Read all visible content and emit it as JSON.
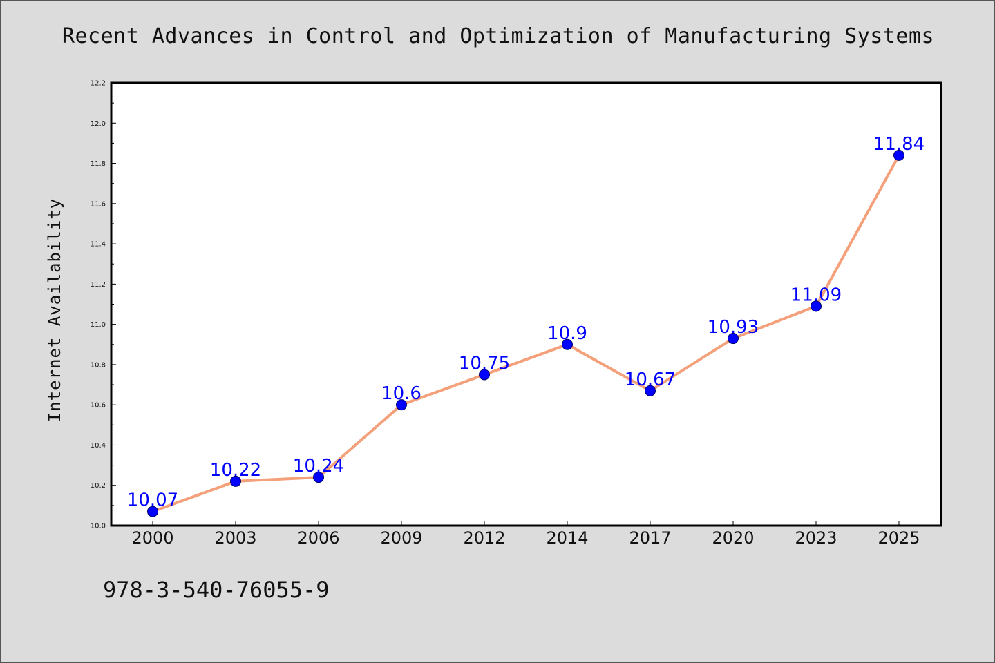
{
  "title": "Recent Advances in Control and Optimization of Manufacturing Systems",
  "footer": "978-3-540-76055-9",
  "colors": {
    "background": "#dcdcdc",
    "plot_background": "#ffffff",
    "line": "#f4a07a",
    "marker": "#0000ff",
    "data_label": "#0000ff"
  },
  "chart_data": {
    "type": "line",
    "title": "Recent Advances in Control and Optimization of Manufacturing Systems",
    "xlabel": "",
    "ylabel": "Internet Availability",
    "categories": [
      "2000",
      "2003",
      "2006",
      "2009",
      "2012",
      "2014",
      "2017",
      "2020",
      "2023",
      "2025"
    ],
    "series": [
      {
        "values": [
          10.07,
          10.22,
          10.24,
          10.6,
          10.75,
          10.9,
          10.67,
          10.93,
          11.09,
          11.84
        ]
      }
    ],
    "data_labels": [
      "10.07",
      "10.22",
      "10.24",
      "10.6",
      "10.75",
      "10.9",
      "10.67",
      "10.93",
      "11.09",
      "11.84"
    ],
    "ylim": [
      10.0,
      12.2
    ],
    "yticks": [
      "10.0",
      "10.2",
      "10.4",
      "10.6",
      "10.8",
      "11.0",
      "11.2",
      "11.4",
      "11.6",
      "11.8",
      "12.0",
      "12.2"
    ],
    "grid": false,
    "legend": "none"
  }
}
